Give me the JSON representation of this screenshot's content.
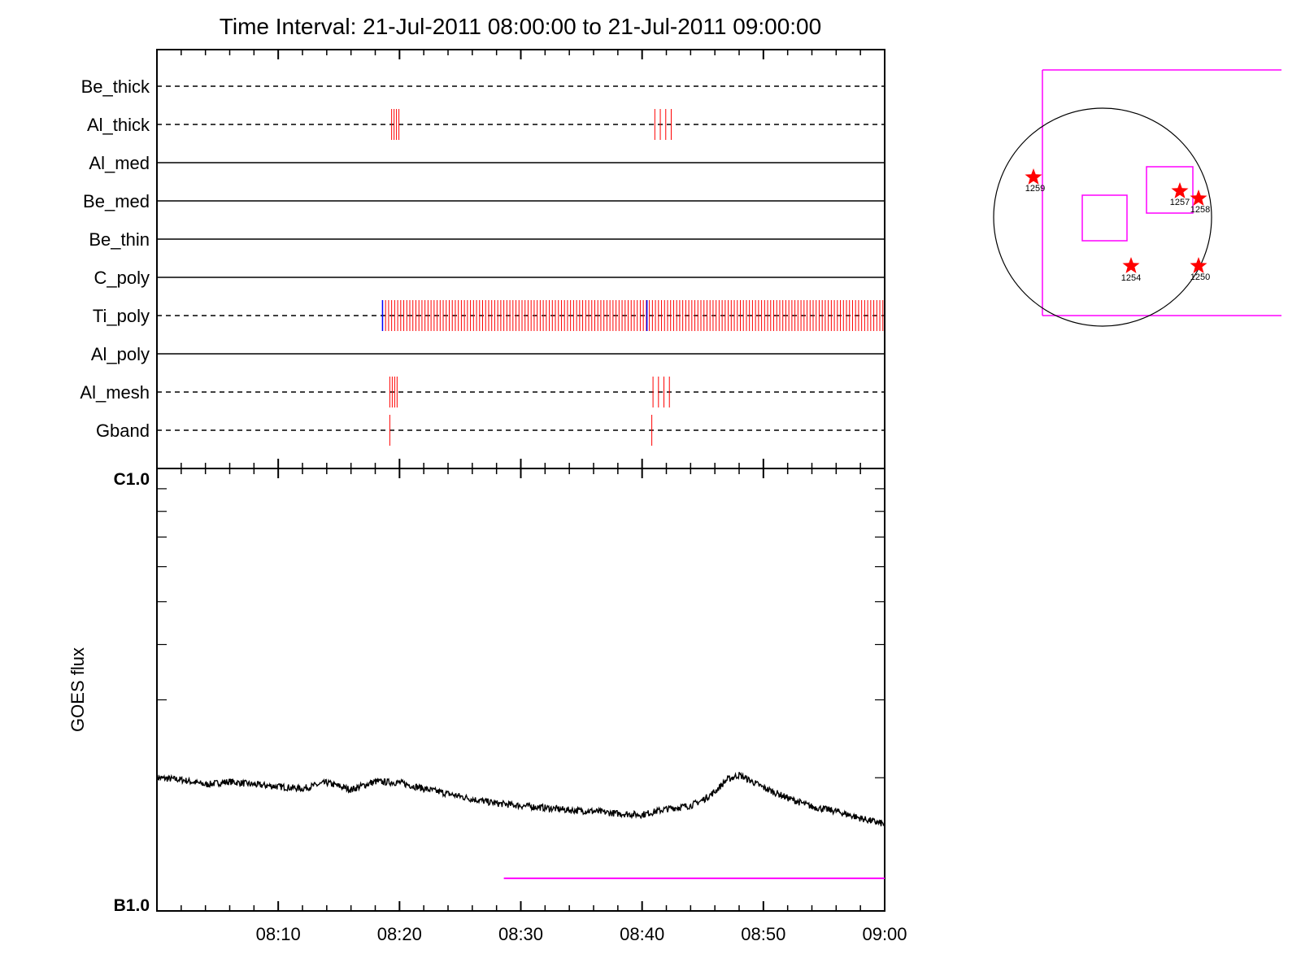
{
  "chart_data": [
    {
      "type": "line",
      "title": "Time Interval: 21-Jul-2011 08:00:00 to 21-Jul-2011 09:00:00",
      "xlabel": "",
      "ylabel": "",
      "x_range": [
        "08:00",
        "09:00"
      ],
      "series": [
        {
          "name": "Be_thick",
          "style": "dashed",
          "events_red": [],
          "events_blue": []
        },
        {
          "name": "Al_thick",
          "style": "dashed",
          "events_red": [
            19.35,
            19.55,
            19.75,
            19.95,
            41.05,
            41.5,
            41.95,
            42.4
          ],
          "events_blue": []
        },
        {
          "name": "Al_med",
          "style": "solid",
          "events_red": [],
          "events_blue": []
        },
        {
          "name": "Be_med",
          "style": "solid",
          "events_red": [],
          "events_blue": []
        },
        {
          "name": "Be_thin",
          "style": "solid",
          "events_red": [],
          "events_blue": []
        },
        {
          "name": "C_poly",
          "style": "solid",
          "events_red": [],
          "events_blue": []
        },
        {
          "name": "Ti_poly",
          "style": "dashed",
          "events_red": "every 0.25 min from 18.6 to 59.9",
          "events_blue": [
            18.6,
            40.4
          ]
        },
        {
          "name": "Al_poly",
          "style": "solid",
          "events_red": [],
          "events_blue": []
        },
        {
          "name": "Al_mesh",
          "style": "dashed",
          "events_red": [
            19.2,
            19.4,
            19.6,
            19.8,
            40.9,
            41.35,
            41.8,
            42.25
          ],
          "events_blue": []
        },
        {
          "name": "Gband",
          "style": "dashed",
          "events_red": [
            19.2,
            40.8
          ],
          "events_blue": []
        }
      ],
      "x_ticks_minutes": [
        10,
        20,
        30,
        40,
        50,
        60
      ]
    },
    {
      "type": "line",
      "title": "",
      "xlabel": "",
      "ylabel": "GOES flux",
      "y_scale": "log",
      "ylim": [
        "B1.0",
        "C1.0"
      ],
      "ylim_numeric": [
        1e-07,
        1e-06
      ],
      "x_tick_labels": [
        "08:10",
        "08:20",
        "08:30",
        "08:40",
        "08:50",
        "09:00"
      ],
      "x_tick_minutes": [
        10,
        20,
        30,
        40,
        50,
        60
      ],
      "series": [
        {
          "name": "",
          "color": "#000000",
          "x": [
            0,
            2,
            4,
            6,
            8,
            10,
            12,
            14,
            16,
            18,
            20,
            22,
            24,
            26,
            28,
            30,
            32,
            34,
            36,
            38,
            40,
            42,
            44,
            45,
            46,
            47,
            48,
            50,
            52,
            54,
            56,
            58,
            60
          ],
          "y": [
            2e-07,
            1.98e-07,
            1.93e-07,
            1.96e-07,
            1.93e-07,
            1.91e-07,
            1.89e-07,
            1.95e-07,
            1.88e-07,
            1.96e-07,
            1.95e-07,
            1.89e-07,
            1.84e-07,
            1.79e-07,
            1.75e-07,
            1.73e-07,
            1.71e-07,
            1.69e-07,
            1.68e-07,
            1.66e-07,
            1.65e-07,
            1.7e-07,
            1.73e-07,
            1.78e-07,
            1.86e-07,
            1.98e-07,
            2.03e-07,
            1.9e-07,
            1.8e-07,
            1.72e-07,
            1.68e-07,
            1.62e-07,
            1.57e-07
          ]
        },
        {
          "name": "",
          "color": "#ff00ff",
          "x": [
            28.6,
            60
          ],
          "y": [
            1.185e-07,
            1.185e-07
          ]
        }
      ]
    }
  ],
  "solar_map": {
    "regions": [
      "1259",
      "1257",
      "1258",
      "1254",
      "1250"
    ],
    "colors": {
      "fov": "#ff00ff",
      "star": "#ff0000",
      "disk": "#000000"
    }
  },
  "colors": {
    "axis": "#000000",
    "event_red": "#ff0000",
    "event_blue": "#0000ff",
    "goes": "#000000",
    "magenta": "#ff00ff"
  }
}
